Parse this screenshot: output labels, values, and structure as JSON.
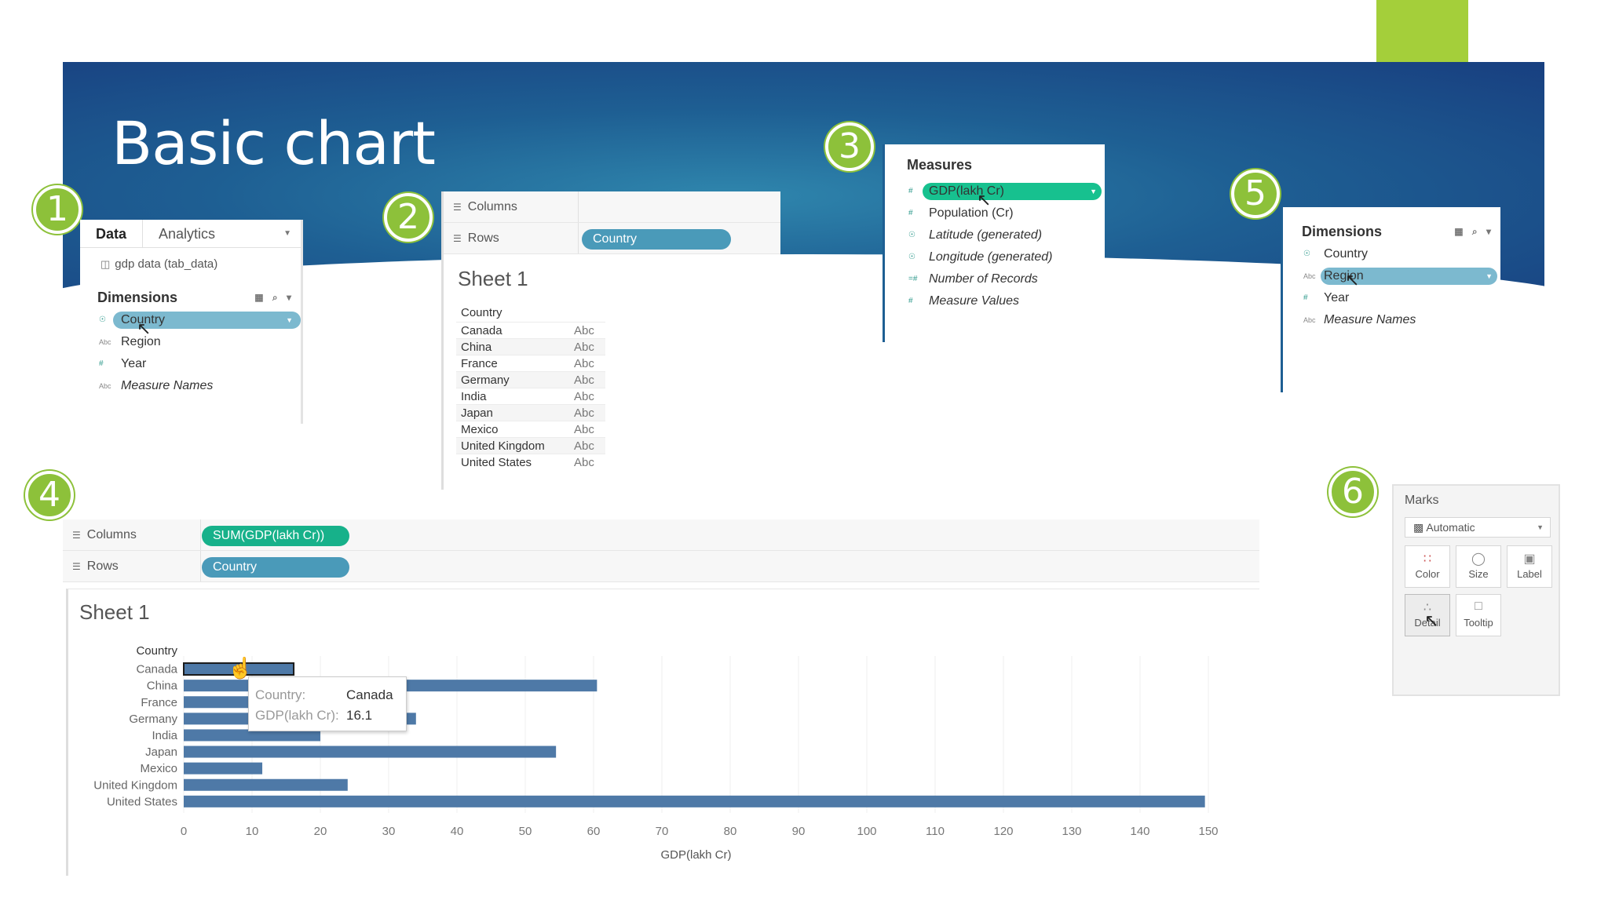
{
  "slide": {
    "title": "Basic chart",
    "steps": [
      "1",
      "2",
      "3",
      "4",
      "5",
      "6"
    ]
  },
  "data_pane": {
    "tabs": [
      "Data",
      "Analytics"
    ],
    "source": "gdp data (tab_data)",
    "dimensions_header": "Dimensions",
    "dimensions": [
      "Country",
      "Region",
      "Year",
      "Measure Names"
    ]
  },
  "sheet_preview": {
    "columns_label": "Columns",
    "rows_label": "Rows",
    "rows_pill": "Country",
    "sheet_title": "Sheet 1",
    "table_header": "Country",
    "countries": [
      "Canada",
      "China",
      "France",
      "Germany",
      "India",
      "Japan",
      "Mexico",
      "United Kingdom",
      "United States"
    ],
    "cell_value": "Abc"
  },
  "measures_pane": {
    "header": "Measures",
    "measures": [
      "GDP(lakh Cr)",
      "Population (Cr)",
      "Latitude (generated)",
      "Longitude (generated)",
      "Number of Records",
      "Measure Values"
    ]
  },
  "dimensions_pane": {
    "header": "Dimensions",
    "dimensions": [
      "Country",
      "Region",
      "Year",
      "Measure Names"
    ]
  },
  "marks_card": {
    "title": "Marks",
    "mark_type": "Automatic",
    "buttons": [
      "Color",
      "Size",
      "Label",
      "Detail",
      "Tooltip"
    ]
  },
  "bar_view": {
    "columns_label": "Columns",
    "rows_label": "Rows",
    "columns_pill": "SUM(GDP(lakh Cr))",
    "rows_pill": "Country",
    "sheet_title": "Sheet 1"
  },
  "tooltip": {
    "key1": "Country:",
    "val1": "Canada",
    "key2": "GDP(lakh Cr):",
    "val2": "16.1"
  },
  "chart_data": {
    "type": "bar",
    "orientation": "horizontal",
    "title": "Sheet 1",
    "ylabel": "Country",
    "xlabel": "GDP(lakh Cr)",
    "categories": [
      "Canada",
      "China",
      "France",
      "Germany",
      "India",
      "Japan",
      "Mexico",
      "United Kingdom",
      "United States"
    ],
    "values": [
      16.1,
      60.5,
      22,
      34,
      20,
      54.5,
      11.5,
      24,
      149.5
    ],
    "xlim": [
      0,
      150
    ],
    "xticks": [
      0,
      10,
      20,
      30,
      40,
      50,
      60,
      70,
      80,
      90,
      100,
      110,
      120,
      130,
      140,
      150
    ],
    "grid": true,
    "bar_color": "#4e79a7",
    "highlighted": "Canada"
  }
}
